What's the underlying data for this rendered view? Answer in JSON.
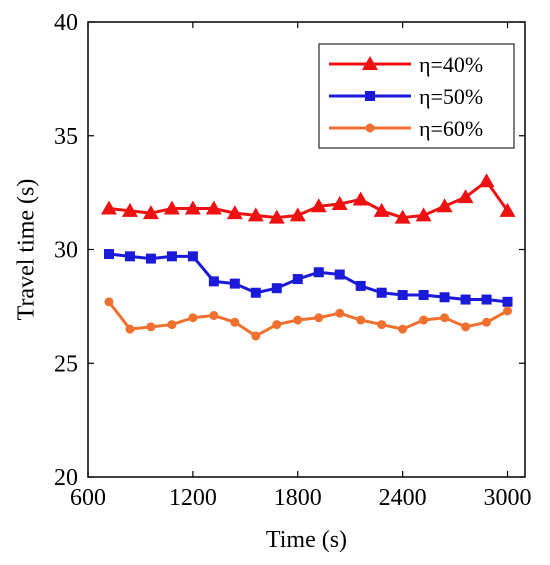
{
  "chart_data": {
    "type": "line",
    "title": "",
    "xlabel": "Time (s)",
    "ylabel": "Travel time (s)",
    "xlim": [
      600,
      3100
    ],
    "ylim": [
      20,
      40
    ],
    "xticks": [
      600,
      1200,
      1800,
      2400,
      3000
    ],
    "yticks": [
      20,
      25,
      30,
      35,
      40
    ],
    "grid": false,
    "legend_position": "top-right",
    "x": [
      720,
      840,
      960,
      1080,
      1200,
      1320,
      1440,
      1560,
      1680,
      1800,
      1920,
      2040,
      2160,
      2280,
      2400,
      2520,
      2640,
      2760,
      2880,
      3000
    ],
    "series": [
      {
        "name": "η=40%",
        "color": "#ee1111",
        "marker": "triangle",
        "values": [
          31.8,
          31.7,
          31.6,
          31.8,
          31.8,
          31.8,
          31.6,
          31.5,
          31.4,
          31.5,
          31.9,
          32.0,
          32.2,
          31.7,
          31.4,
          31.5,
          31.9,
          32.3,
          33.0,
          31.7
        ]
      },
      {
        "name": "η=50%",
        "color": "#1a1ad8",
        "marker": "square",
        "values": [
          29.8,
          29.7,
          29.6,
          29.7,
          29.7,
          28.6,
          28.5,
          28.1,
          28.3,
          28.7,
          29.0,
          28.9,
          28.4,
          28.1,
          28.0,
          28.0,
          27.9,
          27.8,
          27.8,
          27.7
        ]
      },
      {
        "name": "η=60%",
        "color": "#f07030",
        "marker": "circle",
        "values": [
          27.7,
          26.5,
          26.6,
          26.7,
          27.0,
          27.1,
          26.8,
          26.2,
          26.7,
          26.9,
          27.0,
          27.2,
          26.9,
          26.7,
          26.5,
          26.9,
          27.0,
          26.6,
          26.8,
          27.3
        ]
      }
    ]
  }
}
